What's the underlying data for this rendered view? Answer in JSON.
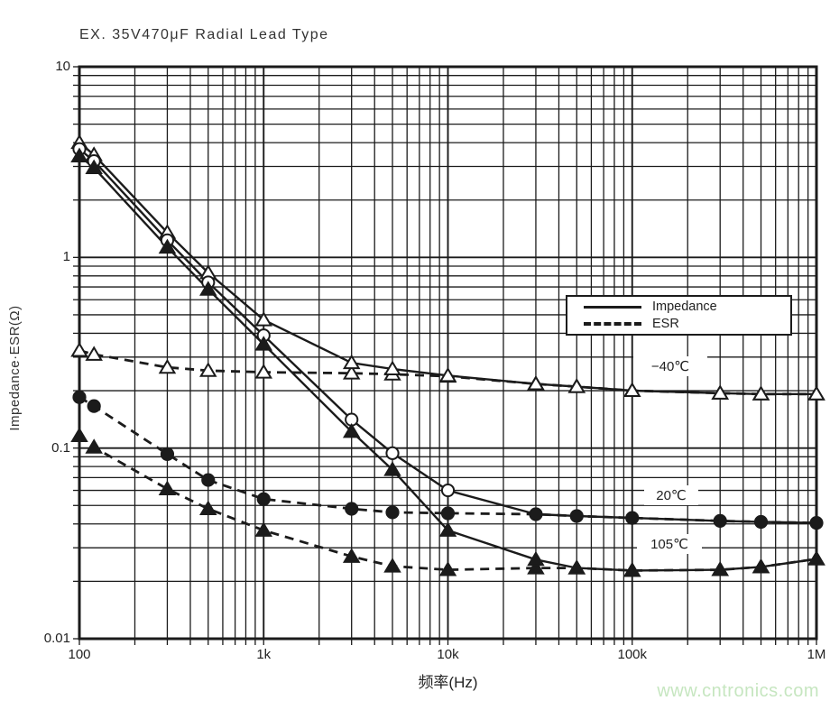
{
  "title": "EX. 35V470μF Radial Lead Type",
  "watermark": "www.cntronics.com",
  "colors": {
    "ink": "#1b1b1b",
    "grid": "#1b1b1b",
    "text": "#2b2b2b",
    "watermark_green": "#c6e6c0",
    "background": "#ffffff"
  },
  "chart_data": {
    "type": "line",
    "title": "EX. 35V470μF Radial Lead Type",
    "xlabel": "频率(Hz)",
    "ylabel": "Impedance·ESR(Ω)",
    "x_scale": "log",
    "y_scale": "log",
    "xlim": [
      100,
      1000000
    ],
    "ylim": [
      0.01,
      10
    ],
    "grid": "log major+minor, both axes",
    "x_ticks": [
      {
        "value": 100,
        "label": "100"
      },
      {
        "value": 1000,
        "label": "1k"
      },
      {
        "value": 10000,
        "label": "10k"
      },
      {
        "value": 100000,
        "label": "100k"
      },
      {
        "value": 1000000,
        "label": "1M"
      }
    ],
    "y_ticks": [
      {
        "value": 10,
        "label": "10"
      },
      {
        "value": 1,
        "label": "1"
      },
      {
        "value": 0.1,
        "label": "0.1"
      },
      {
        "value": 0.01,
        "label": "0.01"
      }
    ],
    "legend": {
      "position": "inside upper-right",
      "entries": [
        {
          "label": "Impedance",
          "style": "solid"
        },
        {
          "label": "ESR",
          "style": "dashed"
        }
      ]
    },
    "annotations": [
      {
        "text": "−40℃"
      },
      {
        "text": "20℃"
      },
      {
        "text": "105℃"
      }
    ],
    "frequencies": [
      100,
      120,
      300,
      500,
      1000,
      3000,
      5000,
      10000,
      30000,
      50000,
      100000,
      300000,
      500000,
      1000000
    ],
    "series": [
      {
        "name": "ESR −40℃",
        "group": "ESR",
        "temperature": "−40℃",
        "line": "dashed",
        "marker": "triangle-open",
        "values": [
          0.325,
          0.31,
          0.265,
          0.255,
          0.25,
          0.247,
          0.244,
          0.238,
          0.217,
          0.21,
          0.2,
          0.194,
          0.192,
          0.192
        ]
      },
      {
        "name": "ESR 20℃",
        "group": "ESR",
        "temperature": "20℃",
        "line": "dashed",
        "marker": "circle-filled",
        "values": [
          0.185,
          0.166,
          0.093,
          0.068,
          0.054,
          0.048,
          0.046,
          0.0455,
          0.045,
          0.044,
          0.043,
          0.0415,
          0.041,
          0.0405
        ]
      },
      {
        "name": "ESR 105℃",
        "group": "ESR",
        "temperature": "105℃",
        "line": "dashed",
        "marker": "triangle-filled",
        "values": [
          0.116,
          0.101,
          0.061,
          0.048,
          0.037,
          0.027,
          0.024,
          0.023,
          0.0235,
          0.0235,
          0.0228,
          0.023,
          0.0238,
          0.0262
        ]
      },
      {
        "name": "Impedance −40℃",
        "group": "Impedance",
        "temperature": "−40℃",
        "line": "solid",
        "marker": "triangle-open",
        "values": [
          4.0,
          3.45,
          1.35,
          0.83,
          0.47,
          0.28,
          0.26,
          0.24,
          0.217,
          0.21,
          0.2,
          0.194,
          0.192,
          0.192
        ]
      },
      {
        "name": "Impedance 20℃",
        "group": "Impedance",
        "temperature": "20℃",
        "line": "solid",
        "marker": "circle-open",
        "marker_max_freq": 10000,
        "values": [
          3.7,
          3.2,
          1.23,
          0.74,
          0.39,
          0.141,
          0.094,
          0.06,
          0.045,
          0.044,
          0.043,
          0.0415,
          0.041,
          0.0405
        ]
      },
      {
        "name": "Impedance 105℃",
        "group": "Impedance",
        "temperature": "105℃",
        "line": "solid",
        "marker": "triangle-filled",
        "values": [
          3.4,
          2.95,
          1.13,
          0.68,
          0.35,
          0.122,
          0.077,
          0.037,
          0.026,
          0.0235,
          0.0228,
          0.023,
          0.0238,
          0.0262
        ]
      }
    ]
  }
}
